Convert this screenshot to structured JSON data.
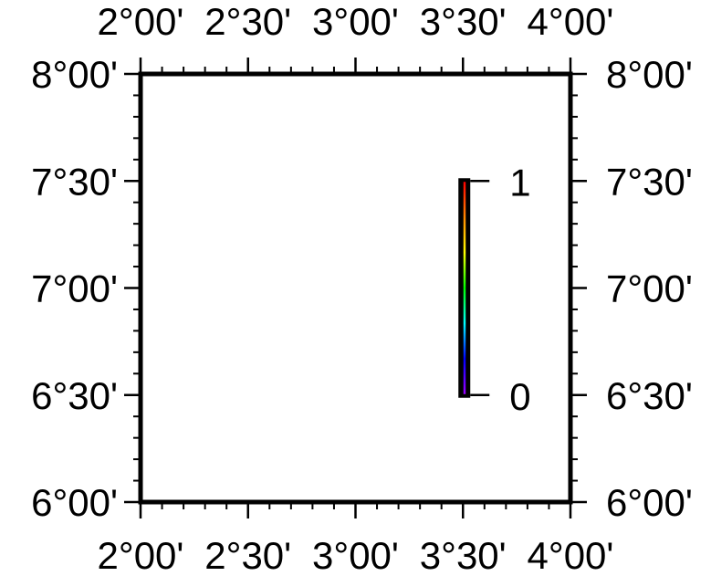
{
  "map": {
    "region": {
      "lon_min": 2.0,
      "lon_max": 4.0,
      "lat_min": 6.0,
      "lat_max": 8.0
    },
    "frame_color": "#000000",
    "background_color": "#ffffff"
  },
  "axes": {
    "x_ticks": [
      {
        "value": 2.0,
        "label": "2°00'"
      },
      {
        "value": 2.5,
        "label": "2°30'"
      },
      {
        "value": 3.0,
        "label": "3°00'"
      },
      {
        "value": 3.5,
        "label": "3°30'"
      },
      {
        "value": 4.0,
        "label": "4°00'"
      }
    ],
    "y_ticks": [
      {
        "value": 8.0,
        "label": "8°00'"
      },
      {
        "value": 7.5,
        "label": "7°30'"
      },
      {
        "value": 7.0,
        "label": "7°00'"
      },
      {
        "value": 6.5,
        "label": "6°30'"
      },
      {
        "value": 6.0,
        "label": "6°00'"
      }
    ],
    "minor_tick_interval": 0.1,
    "labels_on": [
      "top",
      "bottom",
      "left",
      "right"
    ]
  },
  "colorbar": {
    "orientation": "vertical",
    "min": 0,
    "max": 1,
    "tick_labels": [
      {
        "value": 0,
        "label": "0"
      },
      {
        "value": 1,
        "label": "1"
      }
    ],
    "lon": 3.5,
    "lat_bottom": 6.5,
    "lat_top": 7.5,
    "colors": [
      "#9c00ff",
      "#0000ff",
      "#00ffff",
      "#00ff00",
      "#ffff00",
      "#ff8800",
      "#ff0000"
    ]
  }
}
